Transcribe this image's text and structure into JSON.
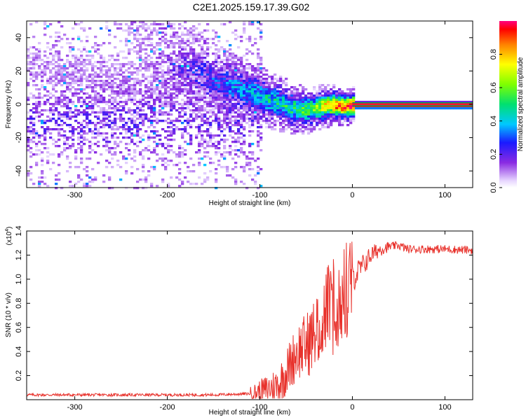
{
  "title": "C2E1.2025.159.17.39.G02",
  "chart_data": [
    {
      "type": "heatmap",
      "name": "spectrogram",
      "xlabel": "Height of straight line (km)",
      "ylabel": "Frequency (Hz)",
      "xlim": [
        -352,
        130
      ],
      "ylim": [
        -50,
        50
      ],
      "xticks": [
        -300,
        -200,
        -100,
        0,
        100
      ],
      "yticks": [
        -40,
        -20,
        0,
        20,
        40
      ],
      "colorbar": {
        "label": "Normalized spectral amplitude",
        "range": [
          0,
          1
        ],
        "ticks": [
          0.0,
          0.2,
          0.4,
          0.6,
          0.8
        ],
        "tick_labels": [
          "0.0",
          "0.2",
          "0.4",
          "0.6",
          "0.8"
        ]
      },
      "features": {
        "noise_region_km": [
          -352,
          -100
        ],
        "noise_amplitude": 0.15,
        "signal_ridge": [
          {
            "x": -125,
            "y": 10,
            "amp": 0.3
          },
          {
            "x": -110,
            "y": 7,
            "amp": 0.35
          },
          {
            "x": -90,
            "y": 3,
            "amp": 0.4
          },
          {
            "x": -70,
            "y": -1,
            "amp": 0.45
          },
          {
            "x": -55,
            "y": -3,
            "amp": 0.5
          },
          {
            "x": -40,
            "y": -2,
            "amp": 0.6
          },
          {
            "x": -30,
            "y": 0,
            "amp": 0.75
          },
          {
            "x": -20,
            "y": 0,
            "amp": 0.85
          },
          {
            "x": -10,
            "y": -1,
            "amp": 0.9
          },
          {
            "x": 0,
            "y": 0,
            "amp": 1.0
          },
          {
            "x": 130,
            "y": 0,
            "amp": 1.0
          }
        ]
      }
    },
    {
      "type": "line",
      "name": "snr",
      "xlabel": "Height of straight line (km)",
      "ylabel": "SNR (10 * v/v)",
      "multiplier_label": "(x10",
      "multiplier_exp": "4",
      "xlim": [
        -352,
        130
      ],
      "ylim": [
        0,
        1.4
      ],
      "xticks": [
        -300,
        -200,
        -100,
        0,
        100
      ],
      "yticks": [
        0.2,
        0.4,
        0.6,
        0.8,
        1.0,
        1.2,
        1.4
      ],
      "ytick_labels": [
        "0.2",
        "0.4",
        "0.6",
        "0.8",
        "1.0",
        "1.2",
        "1.4"
      ],
      "color": "#e8322c",
      "series": [
        {
          "name": "SNR",
          "x": [
            -352,
            -300,
            -250,
            -200,
            -150,
            -110,
            -95,
            -80,
            -70,
            -60,
            -50,
            -40,
            -30,
            -20,
            -10,
            0,
            10,
            20,
            30,
            40,
            50,
            60,
            80,
            100,
            130
          ],
          "y": [
            0.04,
            0.04,
            0.04,
            0.04,
            0.04,
            0.05,
            0.08,
            0.12,
            0.25,
            0.4,
            0.45,
            0.55,
            0.75,
            0.8,
            0.85,
            1.0,
            1.1,
            1.2,
            1.25,
            1.27,
            1.28,
            1.25,
            1.25,
            1.25,
            1.24
          ]
        }
      ]
    }
  ]
}
